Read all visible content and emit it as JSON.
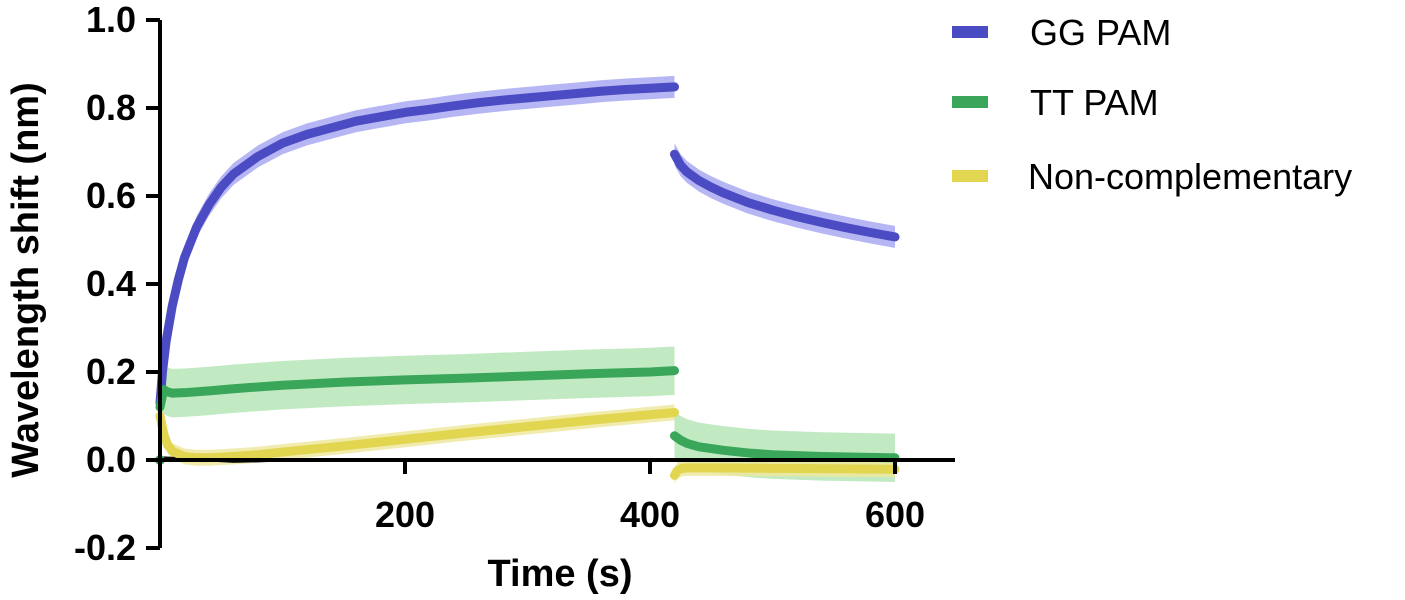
{
  "chart_data": {
    "type": "line",
    "xlabel": "Time (s)",
    "ylabel": "Wavelength shift (nm)",
    "xlim": [
      0,
      650
    ],
    "ylim": [
      -0.2,
      1.0
    ],
    "x_ticks": [
      200,
      400,
      600
    ],
    "x_tick_labels": [
      "200",
      "400",
      "600"
    ],
    "y_ticks": [
      -0.2,
      0.0,
      0.2,
      0.4,
      0.6,
      0.8,
      1.0
    ],
    "y_tick_labels": [
      "-0.2",
      "0.0",
      "0.2",
      "0.4",
      "0.6",
      "0.8",
      "1.0"
    ],
    "grid": false,
    "legend_position": "right",
    "series": [
      {
        "name": "GG PAM",
        "color": "#4b4bc3",
        "band_color": "#a9a9f2",
        "segments": [
          {
            "x": [
              0,
              2,
              5,
              10,
              15,
              20,
              30,
              40,
              50,
              60,
              80,
              100,
              120,
              140,
              160,
              180,
              200,
              220,
              240,
              260,
              280,
              300,
              320,
              340,
              360,
              380,
              400,
              420
            ],
            "y": [
              0.13,
              0.2,
              0.27,
              0.35,
              0.41,
              0.46,
              0.53,
              0.58,
              0.62,
              0.65,
              0.69,
              0.72,
              0.74,
              0.755,
              0.77,
              0.78,
              0.79,
              0.797,
              0.805,
              0.812,
              0.818,
              0.823,
              0.828,
              0.833,
              0.838,
              0.842,
              0.845,
              0.848
            ]
          },
          {
            "x": [
              420,
              425,
              430,
              440,
              450,
              460,
              480,
              500,
              520,
              540,
              560,
              580,
              600
            ],
            "y": [
              0.695,
              0.67,
              0.655,
              0.635,
              0.62,
              0.607,
              0.585,
              0.568,
              0.553,
              0.54,
              0.528,
              0.517,
              0.507
            ]
          }
        ],
        "band_halfwidth": 0.025
      },
      {
        "name": "TT PAM",
        "color": "#3aa65a",
        "band_color": "#b6e6b8",
        "segments": [
          {
            "x": [
              0,
              3,
              6,
              10,
              20,
              40,
              60,
              100,
              150,
              200,
              250,
              300,
              350,
              400,
              420
            ],
            "y": [
              0.12,
              0.16,
              0.155,
              0.152,
              0.153,
              0.157,
              0.162,
              0.17,
              0.177,
              0.182,
              0.186,
              0.191,
              0.196,
              0.2,
              0.203
            ]
          },
          {
            "x": [
              420,
              425,
              430,
              440,
              460,
              480,
              500,
              540,
              600
            ],
            "y": [
              0.055,
              0.045,
              0.038,
              0.03,
              0.022,
              0.016,
              0.012,
              0.008,
              0.005
            ]
          }
        ],
        "band_halfwidth": 0.055
      },
      {
        "name": "Non-complementary",
        "color": "#e2d651",
        "band_color": "#efe7a0",
        "segments": [
          {
            "x": [
              0,
              3,
              6,
              10,
              20,
              30,
              40,
              60,
              80,
              100,
              150,
              200,
              250,
              300,
              350,
              400,
              420
            ],
            "y": [
              0.1,
              0.06,
              0.035,
              0.02,
              0.008,
              0.005,
              0.005,
              0.008,
              0.012,
              0.018,
              0.032,
              0.047,
              0.062,
              0.076,
              0.09,
              0.103,
              0.108
            ]
          },
          {
            "x": [
              420,
              422,
              425,
              430,
              450,
              500,
              550,
              600
            ],
            "y": [
              -0.035,
              -0.025,
              -0.02,
              -0.018,
              -0.018,
              -0.019,
              -0.02,
              -0.021
            ]
          }
        ],
        "band_halfwidth": 0.018
      }
    ],
    "baseline_series": {
      "color": "#111111",
      "x": [
        0,
        10,
        20,
        40,
        60,
        80,
        100,
        150,
        200,
        250,
        300,
        350,
        400,
        420
      ],
      "y": [
        0.005,
        0.004,
        0.002,
        0.0,
        -0.003,
        -0.002,
        0.0,
        0.0,
        0.0,
        0.0,
        0.0,
        0.0,
        0.0,
        0.0
      ]
    }
  },
  "legend": {
    "items": [
      {
        "label": "GG PAM",
        "color": "#4b4bc3"
      },
      {
        "label": "TT PAM",
        "color": "#3aa65a"
      },
      {
        "label": "Non-complementary",
        "color": "#e2d651"
      }
    ]
  }
}
